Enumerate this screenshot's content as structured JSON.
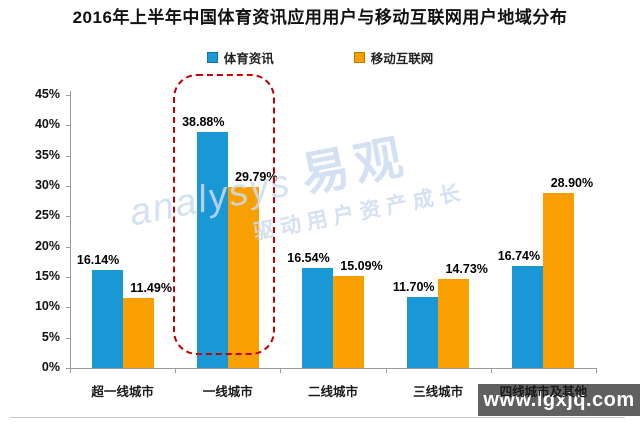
{
  "title": "2016年上半年中国体育资讯应用用户与移动互联网用户地域分布",
  "legend": [
    {
      "label": "体育资讯",
      "color": "#1a97d5"
    },
    {
      "label": "移动互联网",
      "color": "#f8a001"
    }
  ],
  "chart_data": {
    "type": "bar",
    "title": "2016年上半年中国体育资讯应用用户与移动互联网用户地域分布",
    "categories": [
      "超一线城市",
      "一线城市",
      "二线城市",
      "三线城市",
      "四线城市及其他"
    ],
    "series": [
      {
        "name": "体育资讯",
        "color": "#1a97d5",
        "values": [
          16.14,
          38.88,
          16.54,
          11.7,
          16.74
        ]
      },
      {
        "name": "移动互联网",
        "color": "#f8a001",
        "values": [
          11.49,
          29.79,
          15.09,
          14.73,
          28.9
        ]
      }
    ],
    "value_labels": [
      [
        "16.14%",
        "38.88%",
        "16.54%",
        "11.70%",
        "16.74%"
      ],
      [
        "11.49%",
        "29.79%",
        "15.09%",
        "14.73%",
        "28.90%"
      ]
    ],
    "ylim": [
      0,
      45
    ],
    "ytick_step": 5,
    "ytick_labels": [
      "0%",
      "5%",
      "10%",
      "15%",
      "20%",
      "25%",
      "30%",
      "35%",
      "40%",
      "45%"
    ],
    "grid": false,
    "legend_position": "top",
    "highlight": {
      "category": "一线城市",
      "index": 1,
      "style": "red-dashed-rounded-box",
      "color": "#c00000"
    }
  },
  "watermark_center": {
    "brand_latin": "analysys",
    "brand_cjk": "易观",
    "slogan": "驱动用户资产成长",
    "color": "#ccdcf0"
  },
  "watermark_bottom_right": {
    "text": "www.lgxjq.com",
    "text_color": "#ffffff",
    "bg_color": "rgba(74,74,74,0.88)"
  }
}
